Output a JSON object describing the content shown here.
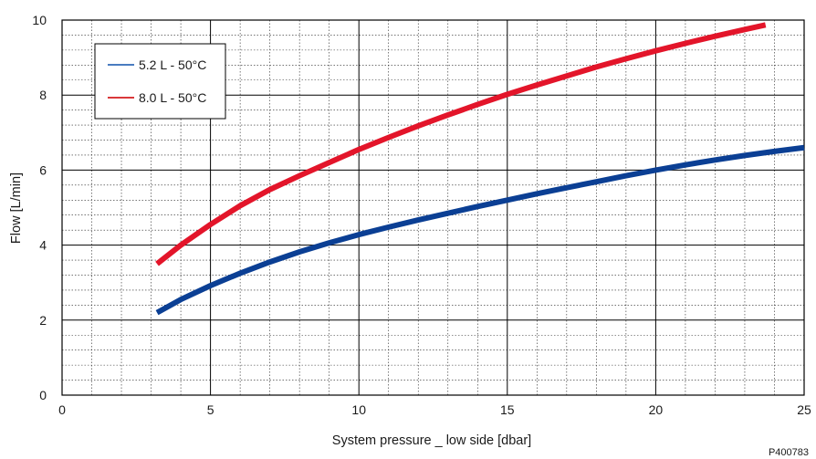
{
  "chart_data": {
    "type": "line",
    "title": "",
    "xlabel": "System pressure _ low side [dbar]",
    "ylabel": "Flow  [L/min]",
    "xlim": [
      0,
      25
    ],
    "ylim": [
      0,
      10
    ],
    "x_ticks": [
      "0",
      "5",
      "10",
      "15",
      "20",
      "25"
    ],
    "y_ticks": [
      "0",
      "2",
      "4",
      "6",
      "8",
      "10"
    ],
    "grid": true,
    "legend_position": "top-left",
    "reference_code": "P400783",
    "series": [
      {
        "name": "5.2 L - 50°C",
        "color": "#0b3f94",
        "legend_color": "#4a7cc0",
        "x": [
          3.2,
          4,
          5,
          6,
          7,
          8,
          9,
          10,
          11,
          12,
          13,
          14,
          15,
          16,
          17,
          18,
          19,
          20,
          21,
          22,
          23,
          24,
          25
        ],
        "y": [
          2.2,
          2.55,
          2.92,
          3.25,
          3.55,
          3.82,
          4.06,
          4.28,
          4.48,
          4.67,
          4.85,
          5.03,
          5.2,
          5.37,
          5.53,
          5.69,
          5.85,
          6.0,
          6.14,
          6.27,
          6.39,
          6.5,
          6.6
        ]
      },
      {
        "name": "8.0 L - 50°C",
        "color": "#e3152a",
        "legend_color": "#d9383a",
        "x": [
          3.2,
          4,
          5,
          6,
          7,
          8,
          9,
          10,
          11,
          12,
          13,
          14,
          15,
          16,
          17,
          18,
          19,
          20,
          21,
          22,
          23,
          23.7
        ],
        "y": [
          3.5,
          4.0,
          4.55,
          5.05,
          5.48,
          5.85,
          6.2,
          6.55,
          6.87,
          7.18,
          7.47,
          7.75,
          8.02,
          8.27,
          8.51,
          8.75,
          8.97,
          9.18,
          9.38,
          9.57,
          9.75,
          9.87
        ]
      }
    ]
  }
}
